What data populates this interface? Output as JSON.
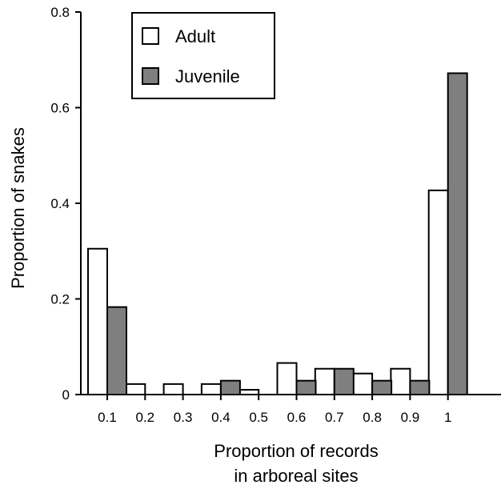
{
  "chart_data": {
    "type": "bar",
    "xlabel_lines": [
      "Proportion of records",
      "in arboreal sites"
    ],
    "ylabel": "Proportion of snakes",
    "ylim": [
      0,
      0.8
    ],
    "yticks": [
      "0",
      "0.2",
      "0.4",
      "0.6",
      "0.8"
    ],
    "categories": [
      "0.1",
      "0.2",
      "0.3",
      "0.4",
      "0.5",
      "0.6",
      "0.7",
      "0.8",
      "0.9",
      "1"
    ],
    "legend_position": "top-left",
    "series": [
      {
        "name": "Adult",
        "color": "#ffffff",
        "values": [
          0.305,
          0.022,
          0.022,
          0.022,
          0.01,
          0.066,
          0.054,
          0.044,
          0.054,
          0.427
        ]
      },
      {
        "name": "Juvenile",
        "color": "#7f7f7f",
        "values": [
          0.183,
          0.0,
          0.0,
          0.029,
          0.0,
          0.029,
          0.054,
          0.029,
          0.029,
          0.672
        ]
      }
    ]
  }
}
